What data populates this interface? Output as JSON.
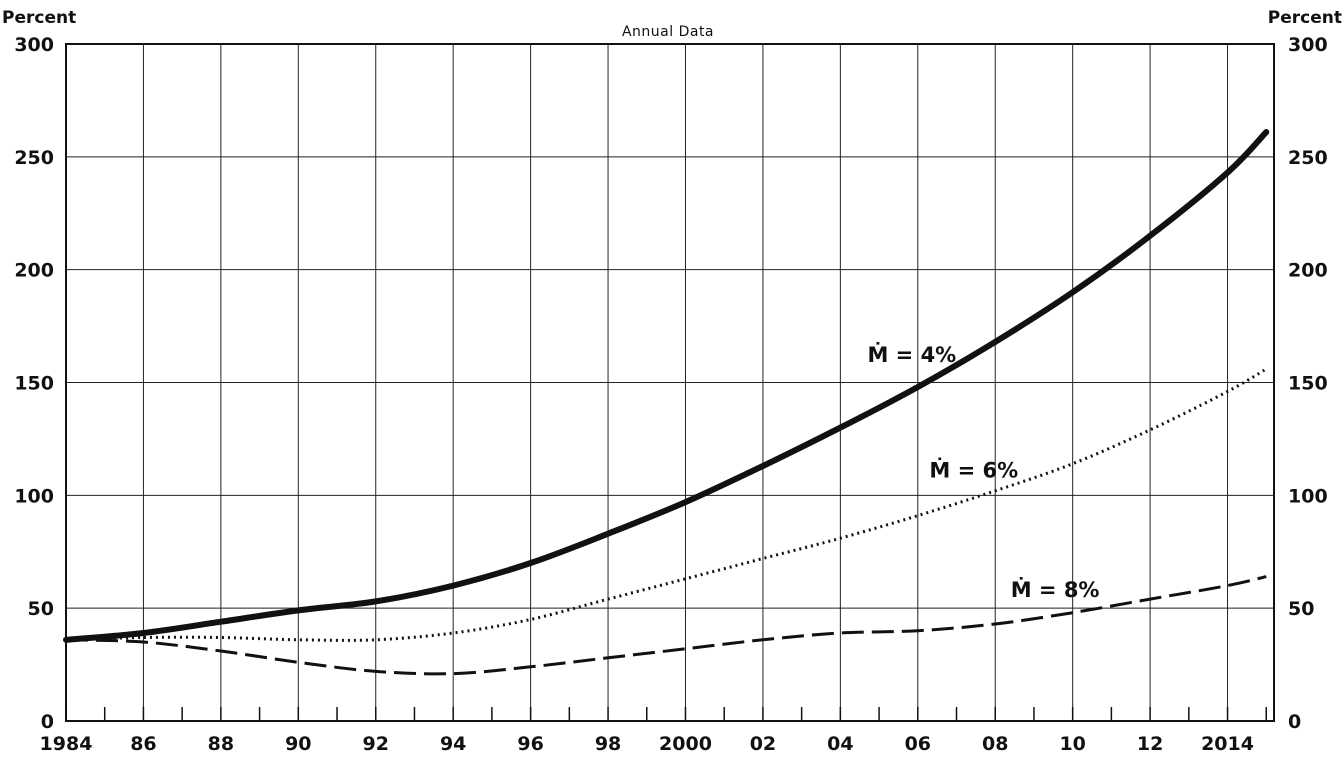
{
  "chart_data": {
    "type": "line",
    "subtitle": "Annual Data",
    "ylabel_left": "Percent",
    "ylabel_right": "Percent",
    "xlim": [
      1984,
      2015
    ],
    "ylim": [
      0,
      300
    ],
    "grid": true,
    "y_ticks": [
      0,
      50,
      100,
      150,
      200,
      250,
      300
    ],
    "y_tick_labels": [
      "0",
      "50",
      "100",
      "150",
      "200",
      "250",
      "300"
    ],
    "x_ticks": [
      1984,
      1986,
      1988,
      1990,
      1992,
      1994,
      1996,
      1998,
      2000,
      2002,
      2004,
      2006,
      2008,
      2010,
      2012,
      2014
    ],
    "x_tick_labels": [
      "1984",
      "86",
      "88",
      "90",
      "92",
      "94",
      "96",
      "98",
      "2000",
      "02",
      "04",
      "06",
      "08",
      "10",
      "12",
      "2014"
    ],
    "x": [
      1984,
      1986,
      1988,
      1990,
      1992,
      1994,
      1996,
      1998,
      2000,
      2002,
      2004,
      2006,
      2008,
      2010,
      2012,
      2014,
      2015
    ],
    "series": [
      {
        "name": "Ṁ = 4%",
        "style": "solid",
        "values": [
          36,
          39,
          44,
          49,
          53,
          60,
          70,
          83,
          97,
          113,
          130,
          148,
          168,
          190,
          215,
          243,
          261
        ]
      },
      {
        "name": "Ṁ = 6%",
        "style": "dotted",
        "values": [
          36,
          37,
          37,
          36,
          36,
          39,
          45,
          54,
          63,
          72,
          81,
          91,
          102,
          114,
          129,
          146,
          156
        ]
      },
      {
        "name": "Ṁ = 8%",
        "style": "dashed",
        "values": [
          36,
          35,
          31,
          26,
          22,
          21,
          24,
          28,
          32,
          36,
          39,
          40,
          43,
          48,
          54,
          60,
          64
        ]
      }
    ],
    "annotations": [
      {
        "text": "Ṁ = 4%",
        "x": 2004.7,
        "y": 159
      },
      {
        "text": "Ṁ = 6%",
        "x": 2006.3,
        "y": 108
      },
      {
        "text": "Ṁ = 8%",
        "x": 2008.4,
        "y": 55
      }
    ]
  }
}
